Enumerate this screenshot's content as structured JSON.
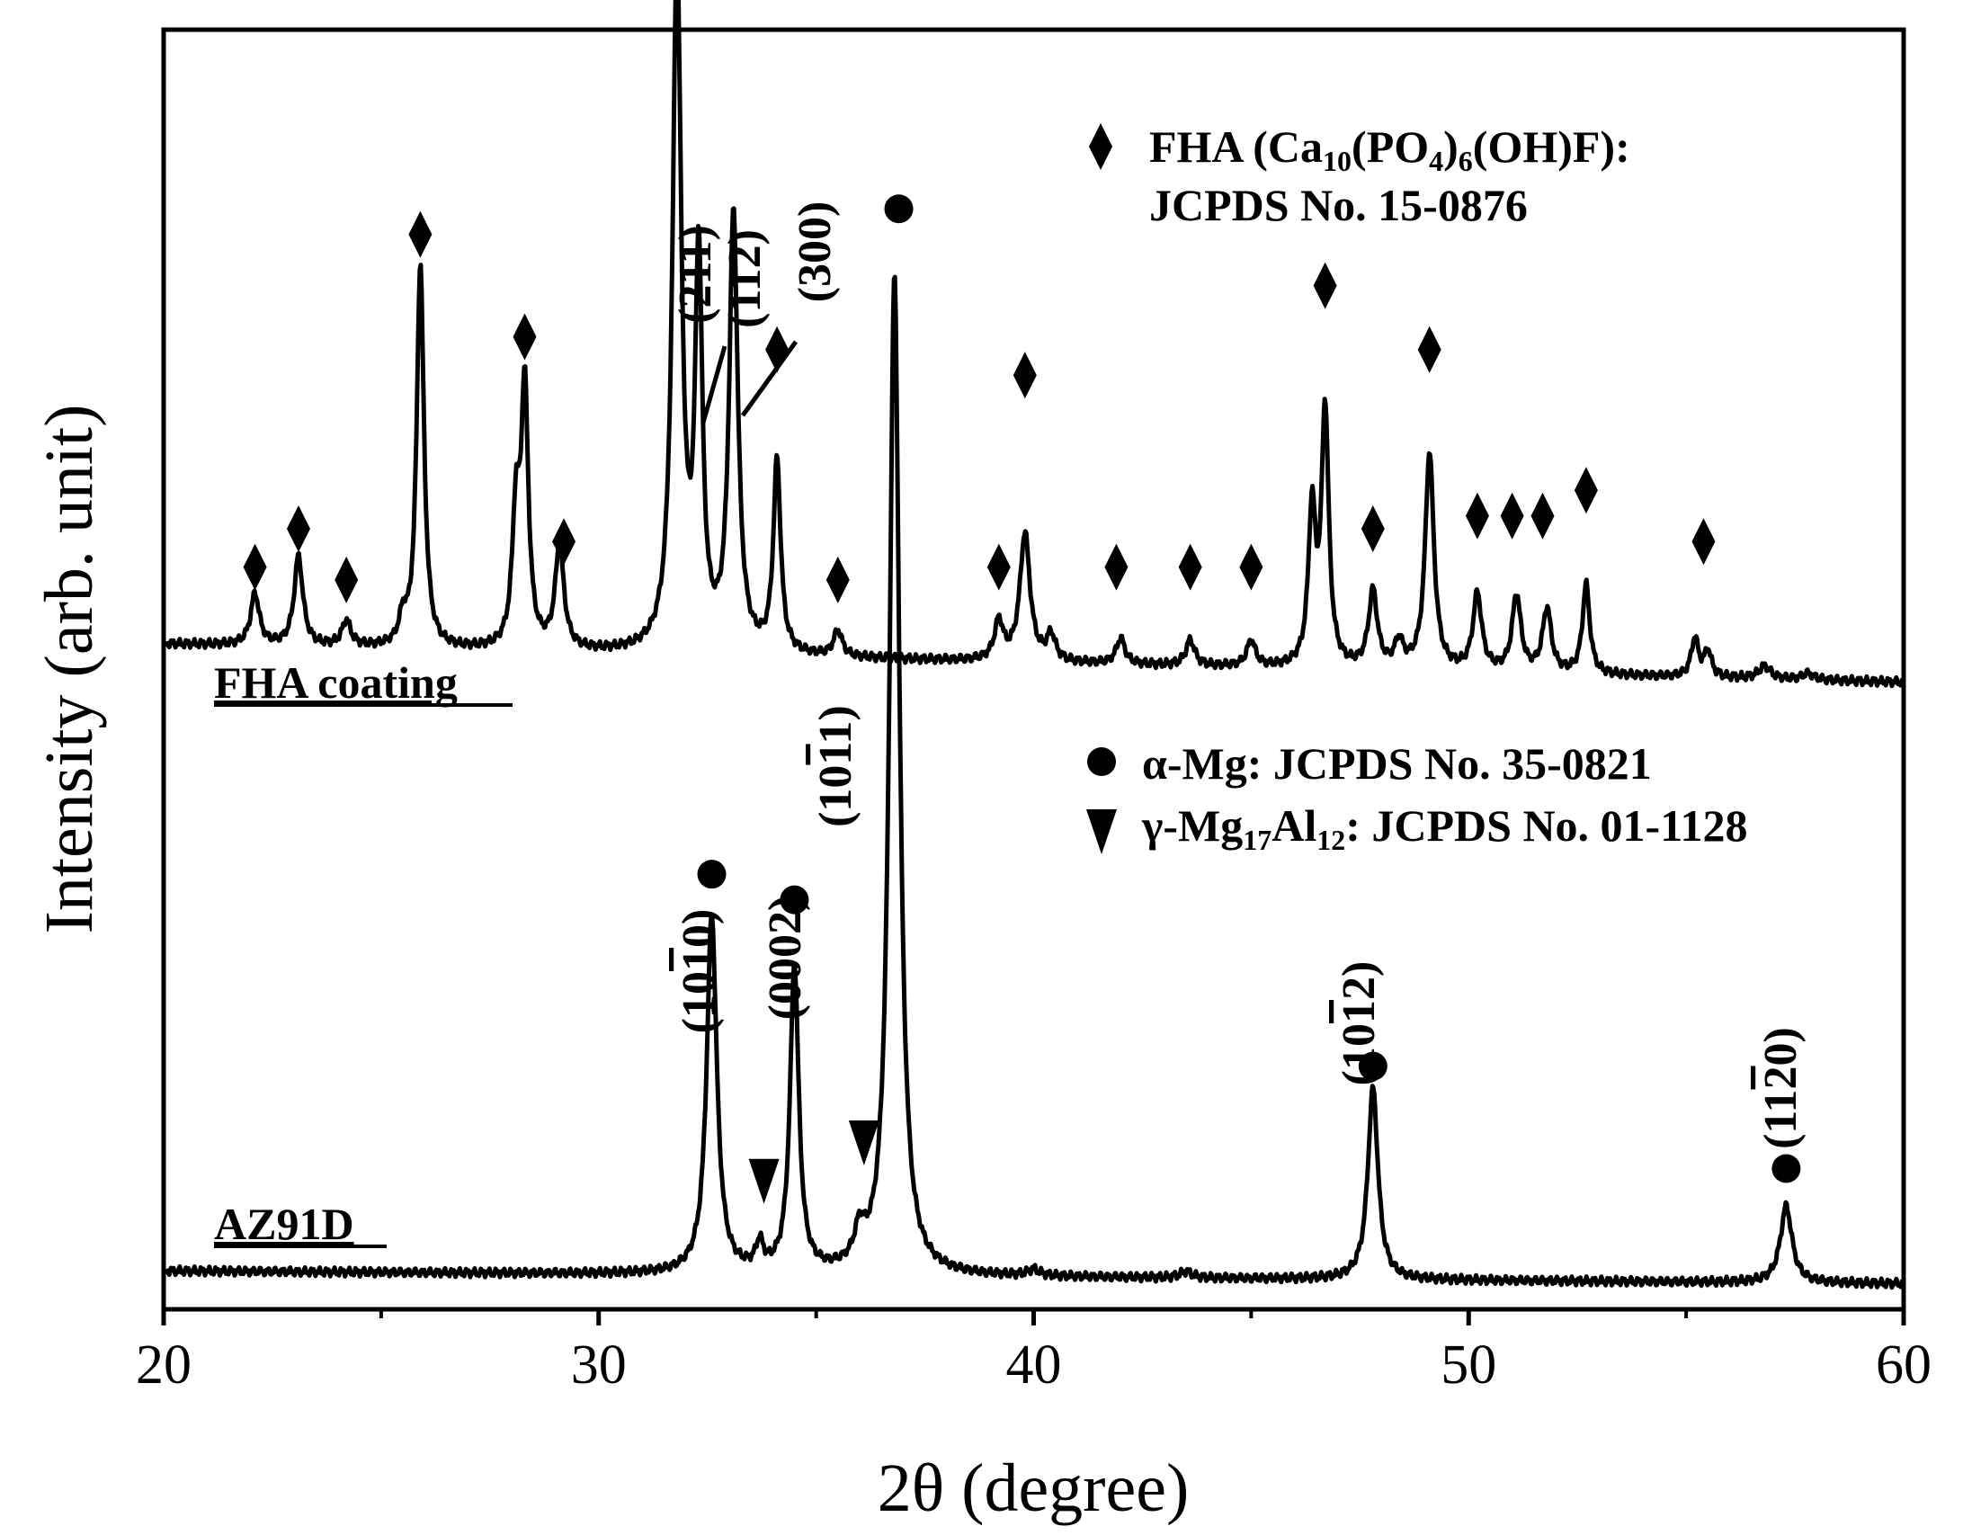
{
  "chart_data": {
    "type": "line",
    "xlabel": "2θ (degree)",
    "ylabel": "Intensity (arb. unit)",
    "xlim": [
      20,
      60
    ],
    "x_ticks": [
      "20",
      "30",
      "40",
      "50",
      "60"
    ],
    "y_ticks_shown": false,
    "series": [
      {
        "name": "FHA coating",
        "baseline_start": 0.52,
        "baseline_end": 0.49,
        "peaks": [
          {
            "x": 22.1,
            "h": 0.04,
            "w": 0.12
          },
          {
            "x": 23.1,
            "h": 0.07,
            "w": 0.12
          },
          {
            "x": 24.2,
            "h": 0.02,
            "w": 0.12
          },
          {
            "x": 25.5,
            "h": 0.02,
            "w": 0.1
          },
          {
            "x": 25.9,
            "h": 0.3,
            "w": 0.1
          },
          {
            "x": 28.1,
            "h": 0.1,
            "w": 0.1
          },
          {
            "x": 28.3,
            "h": 0.2,
            "w": 0.1
          },
          {
            "x": 29.1,
            "h": 0.08,
            "w": 0.12
          },
          {
            "x": 31.8,
            "h": 0.54,
            "w": 0.12
          },
          {
            "x": 32.3,
            "h": 0.3,
            "w": 0.1
          },
          {
            "x": 33.1,
            "h": 0.34,
            "w": 0.12
          },
          {
            "x": 34.1,
            "h": 0.15,
            "w": 0.1
          },
          {
            "x": 35.5,
            "h": 0.02,
            "w": 0.12
          },
          {
            "x": 39.2,
            "h": 0.03,
            "w": 0.12
          },
          {
            "x": 39.8,
            "h": 0.1,
            "w": 0.14
          },
          {
            "x": 40.4,
            "h": 0.02,
            "w": 0.12
          },
          {
            "x": 42.0,
            "h": 0.02,
            "w": 0.12
          },
          {
            "x": 43.6,
            "h": 0.02,
            "w": 0.12
          },
          {
            "x": 45.0,
            "h": 0.02,
            "w": 0.12
          },
          {
            "x": 46.4,
            "h": 0.12,
            "w": 0.1
          },
          {
            "x": 46.7,
            "h": 0.2,
            "w": 0.1
          },
          {
            "x": 47.8,
            "h": 0.06,
            "w": 0.12
          },
          {
            "x": 48.4,
            "h": 0.02,
            "w": 0.12
          },
          {
            "x": 49.1,
            "h": 0.17,
            "w": 0.12
          },
          {
            "x": 50.2,
            "h": 0.06,
            "w": 0.12
          },
          {
            "x": 51.1,
            "h": 0.06,
            "w": 0.12
          },
          {
            "x": 51.8,
            "h": 0.05,
            "w": 0.12
          },
          {
            "x": 52.7,
            "h": 0.07,
            "w": 0.1
          },
          {
            "x": 55.2,
            "h": 0.03,
            "w": 0.1
          },
          {
            "x": 55.5,
            "h": 0.02,
            "w": 0.1
          },
          {
            "x": 56.8,
            "h": 0.01,
            "w": 0.16
          },
          {
            "x": 57.8,
            "h": 0.005,
            "w": 0.16
          }
        ]
      },
      {
        "name": "AZ91D",
        "baseline_start": 0.03,
        "baseline_end": 0.02,
        "peaks": [
          {
            "x": 32.6,
            "h": 0.28,
            "w": 0.14
          },
          {
            "x": 33.7,
            "h": 0.02,
            "w": 0.1
          },
          {
            "x": 34.5,
            "h": 0.24,
            "w": 0.12
          },
          {
            "x": 36.0,
            "h": 0.025,
            "w": 0.14
          },
          {
            "x": 36.8,
            "h": 0.78,
            "w": 0.14
          },
          {
            "x": 40.0,
            "h": 0.005,
            "w": 0.16
          },
          {
            "x": 43.5,
            "h": 0.005,
            "w": 0.16
          },
          {
            "x": 47.8,
            "h": 0.15,
            "w": 0.14
          },
          {
            "x": 57.3,
            "h": 0.06,
            "w": 0.16
          }
        ]
      }
    ],
    "markers": {
      "diamond": [
        {
          "x": 22.1,
          "y": 0.58
        },
        {
          "x": 23.1,
          "y": 0.61
        },
        {
          "x": 24.2,
          "y": 0.57
        },
        {
          "x": 25.9,
          "y": 0.84
        },
        {
          "x": 28.3,
          "y": 0.76
        },
        {
          "x": 29.2,
          "y": 0.6
        },
        {
          "x": 34.1,
          "y": 0.75
        },
        {
          "x": 35.5,
          "y": 0.57
        },
        {
          "x": 39.2,
          "y": 0.58
        },
        {
          "x": 39.8,
          "y": 0.73
        },
        {
          "x": 41.9,
          "y": 0.58
        },
        {
          "x": 43.6,
          "y": 0.58
        },
        {
          "x": 45.0,
          "y": 0.58
        },
        {
          "x": 46.7,
          "y": 0.8
        },
        {
          "x": 47.8,
          "y": 0.61
        },
        {
          "x": 49.1,
          "y": 0.75
        },
        {
          "x": 50.2,
          "y": 0.62
        },
        {
          "x": 51.0,
          "y": 0.62
        },
        {
          "x": 51.7,
          "y": 0.62
        },
        {
          "x": 52.7,
          "y": 0.64
        },
        {
          "x": 55.4,
          "y": 0.6
        }
      ],
      "circle": [
        {
          "x": 32.6,
          "y": 0.34
        },
        {
          "x": 34.5,
          "y": 0.32
        },
        {
          "x": 36.9,
          "y": 0.86
        },
        {
          "x": 47.8,
          "y": 0.19
        },
        {
          "x": 57.3,
          "y": 0.11
        }
      ],
      "triangle": [
        {
          "x": 33.8,
          "y": 0.1
        },
        {
          "x": 36.1,
          "y": 0.13
        }
      ]
    },
    "hkl_labels": {
      "fha": [
        "(211)",
        "(112)",
        "(300)"
      ],
      "mg": [
        "(10",
        "(0002)",
        "(10",
        "(10",
        "(11"
      ],
      "mg_overbar": [
        "1",
        "1",
        "1",
        "2"
      ],
      "mg_tail": [
        "0)",
        "1)",
        "2)",
        "0)"
      ]
    },
    "legend": {
      "fha_prefix": "FHA (Ca",
      "fha_sub1": "10",
      "fha_mid1": "(PO",
      "fha_sub2": "4",
      "fha_mid2": ")",
      "fha_sub3": "6",
      "fha_suffix": "(OH)F):",
      "fha_line2": "JCPDS No. 15-0876",
      "mg": "α-Mg: JCPDS No. 35-0821",
      "gamma_prefix": "γ-Mg",
      "gamma_sub1": "17",
      "gamma_mid": "Al",
      "gamma_sub2": "12",
      "gamma_suffix": ": JCPDS No. 01-1128"
    },
    "sample_labels": {
      "fha": "FHA coating",
      "az91d": "AZ91D"
    }
  }
}
